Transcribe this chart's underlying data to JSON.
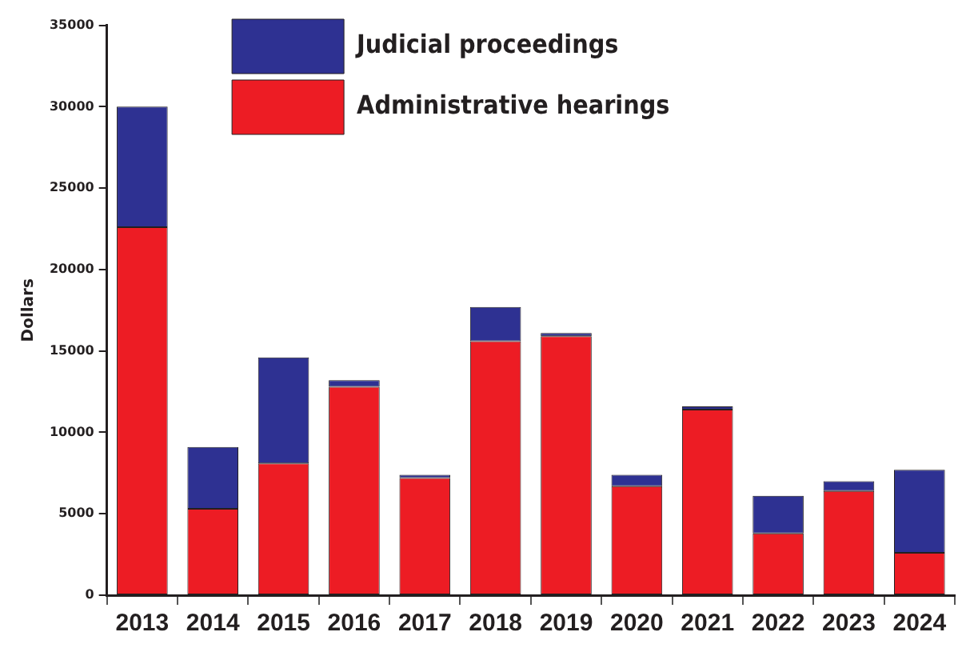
{
  "chart_data": {
    "type": "bar",
    "ylabel": "Dollars",
    "stacked": true,
    "legend": "top left",
    "categories": [
      "2013",
      "2014",
      "2015",
      "2016",
      "2017",
      "2018",
      "2019",
      "2020",
      "2021",
      "2022",
      "2023",
      "2024"
    ],
    "series": [
      {
        "name": "Administrative hearings",
        "color": "#ed1c24",
        "values": [
          22600,
          5300,
          8100,
          12800,
          7200,
          15600,
          15900,
          6700,
          11400,
          3800,
          6400,
          2600
        ]
      },
      {
        "name": "Judicial proceedings",
        "color": "#2e3192",
        "values": [
          7400,
          3800,
          6500,
          400,
          200,
          2100,
          200,
          700,
          200,
          2300,
          600,
          5100
        ]
      }
    ],
    "ylim": [
      0,
      35000
    ],
    "yticks": [
      0,
      5000,
      10000,
      15000,
      20000,
      25000,
      30000,
      35000
    ]
  }
}
